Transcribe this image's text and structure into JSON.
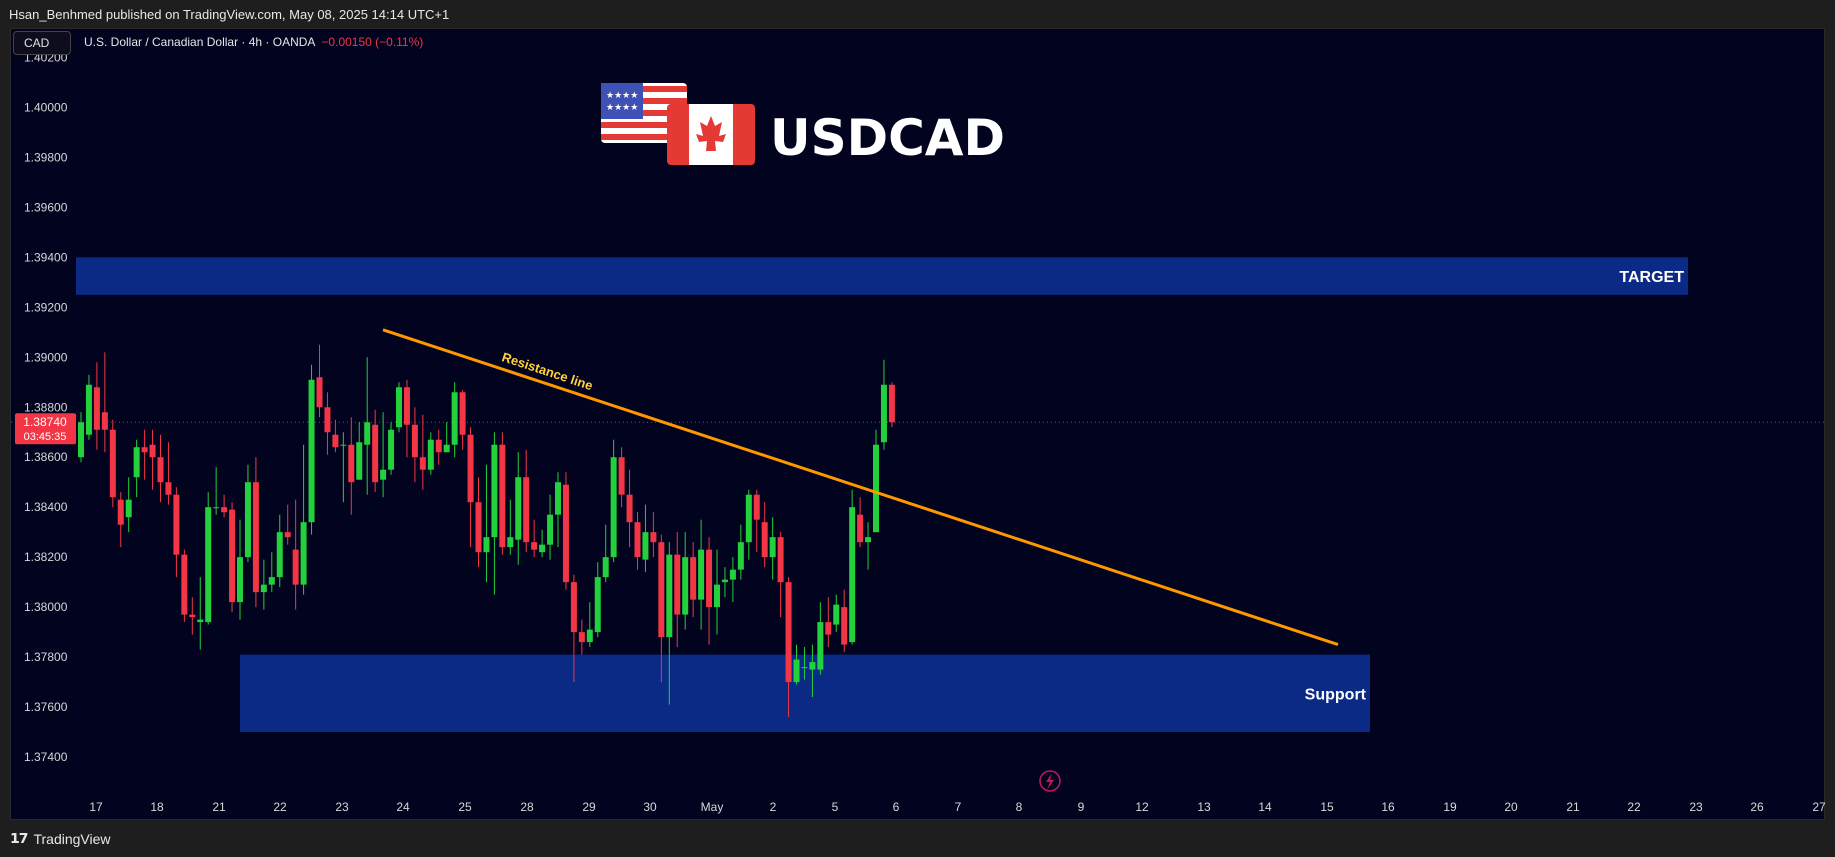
{
  "header": {
    "publisher_line": "Hsan_Benhmed published on TradingView.com, May 08, 2025 14:14 UTC+1"
  },
  "toolbar": {
    "currency_button": "CAD"
  },
  "symbol": {
    "name": "U.S. Dollar / Canadian Dollar · 4h · OANDA",
    "change": "−0.00150 (−0.11%)"
  },
  "footer": {
    "brand": "TradingView"
  },
  "chart_data": {
    "type": "candlestick",
    "title": "USDCAD",
    "ylim": [
      1.3728,
      1.4031
    ],
    "y_ticks": [
      "1.40200",
      "1.40000",
      "1.39800",
      "1.39600",
      "1.39400",
      "1.39200",
      "1.39000",
      "1.38800",
      "1.38600",
      "1.38400",
      "1.38200",
      "1.38000",
      "1.37800",
      "1.37600",
      "1.37400"
    ],
    "x_ticks": [
      "17",
      "18",
      "21",
      "22",
      "23",
      "24",
      "25",
      "28",
      "29",
      "30",
      "May",
      "2",
      "5",
      "6",
      "7",
      "8",
      "9",
      "12",
      "13",
      "14",
      "15",
      "16",
      "19",
      "20",
      "21",
      "22",
      "23",
      "26",
      "27"
    ],
    "current_price": {
      "price": "1.38740",
      "countdown": "03:45:35",
      "value": 1.3874
    },
    "zones": [
      {
        "label": "TARGET",
        "from": 1.3925,
        "to": 1.394,
        "x_from": "17",
        "x_to": "22"
      },
      {
        "label": "Support",
        "from": 1.375,
        "to": 1.3781,
        "x_from": "21",
        "x_to": "15"
      }
    ],
    "trendline": {
      "label": "Resistance line",
      "start": 1.3911,
      "end": 1.3785
    },
    "colors": {
      "up": "#22d13b",
      "down": "#f23645",
      "zone": "#0a2a86",
      "trendline": "#ff9800",
      "trend_label": "#ffd23b",
      "background": "#02031f"
    },
    "candles": [
      [
        1.386,
        1.3874,
        1.3858,
        1.3878
      ],
      [
        1.3869,
        1.3889,
        1.3867,
        1.3893
      ],
      [
        1.3888,
        1.3871,
        1.3863,
        1.3898
      ],
      [
        1.3878,
        1.3871,
        1.3862,
        1.3902
      ],
      [
        1.3871,
        1.3844,
        1.384,
        1.3875
      ],
      [
        1.3843,
        1.3833,
        1.3824,
        1.3846
      ],
      [
        1.3836,
        1.3843,
        1.383,
        1.3852
      ],
      [
        1.3852,
        1.3864,
        1.3844,
        1.3867
      ],
      [
        1.3864,
        1.3862,
        1.3851,
        1.3871
      ],
      [
        1.3865,
        1.386,
        1.3847,
        1.3871
      ],
      [
        1.386,
        1.385,
        1.3842,
        1.3869
      ],
      [
        1.385,
        1.3845,
        1.3841,
        1.3866
      ],
      [
        1.3845,
        1.3821,
        1.3812,
        1.3848
      ],
      [
        1.3821,
        1.3797,
        1.3794,
        1.3823
      ],
      [
        1.3797,
        1.3796,
        1.3789,
        1.3804
      ],
      [
        1.3794,
        1.3795,
        1.3783,
        1.3812
      ],
      [
        1.3794,
        1.384,
        1.3793,
        1.3846
      ],
      [
        1.384,
        1.384,
        1.3837,
        1.3856
      ],
      [
        1.384,
        1.3838,
        1.3836,
        1.3845
      ],
      [
        1.3839,
        1.3802,
        1.3798,
        1.3842
      ],
      [
        1.3802,
        1.382,
        1.3795,
        1.3835
      ],
      [
        1.382,
        1.385,
        1.3818,
        1.3857
      ],
      [
        1.385,
        1.3806,
        1.38,
        1.386
      ],
      [
        1.3806,
        1.3809,
        1.3799,
        1.3819
      ],
      [
        1.3809,
        1.3812,
        1.3806,
        1.3822
      ],
      [
        1.3812,
        1.383,
        1.3808,
        1.3837
      ],
      [
        1.383,
        1.3828,
        1.3825,
        1.3841
      ],
      [
        1.3823,
        1.3809,
        1.3799,
        1.3843
      ],
      [
        1.3809,
        1.3834,
        1.3805,
        1.3865
      ],
      [
        1.3834,
        1.3891,
        1.3829,
        1.3897
      ],
      [
        1.3892,
        1.388,
        1.3876,
        1.3905
      ],
      [
        1.388,
        1.387,
        1.3861,
        1.3886
      ],
      [
        1.3869,
        1.3864,
        1.3862,
        1.3875
      ],
      [
        1.3865,
        1.3865,
        1.3842,
        1.387
      ],
      [
        1.3865,
        1.385,
        1.3837,
        1.3876
      ],
      [
        1.3851,
        1.3866,
        1.3851,
        1.3874
      ],
      [
        1.3865,
        1.3874,
        1.3845,
        1.39
      ],
      [
        1.3873,
        1.385,
        1.3846,
        1.3879
      ],
      [
        1.3851,
        1.3855,
        1.3844,
        1.3878
      ],
      [
        1.3855,
        1.3871,
        1.3853,
        1.3874
      ],
      [
        1.3872,
        1.3888,
        1.387,
        1.389
      ],
      [
        1.3888,
        1.3873,
        1.386,
        1.3891
      ],
      [
        1.3873,
        1.386,
        1.385,
        1.388
      ],
      [
        1.386,
        1.3855,
        1.3847,
        1.3877
      ],
      [
        1.3855,
        1.3867,
        1.3853,
        1.387
      ],
      [
        1.3867,
        1.3862,
        1.3857,
        1.3871
      ],
      [
        1.3862,
        1.3865,
        1.3862,
        1.3874
      ],
      [
        1.3865,
        1.3886,
        1.386,
        1.389
      ],
      [
        1.3886,
        1.3869,
        1.3863,
        1.3887
      ],
      [
        1.3869,
        1.3842,
        1.3824,
        1.3872
      ],
      [
        1.3842,
        1.3822,
        1.3816,
        1.3852
      ],
      [
        1.3822,
        1.3828,
        1.381,
        1.3857
      ],
      [
        1.3828,
        1.3865,
        1.3805,
        1.387
      ],
      [
        1.3865,
        1.3824,
        1.3821,
        1.387
      ],
      [
        1.3824,
        1.3828,
        1.3821,
        1.3843
      ],
      [
        1.3827,
        1.3852,
        1.3817,
        1.3862
      ],
      [
        1.3852,
        1.3826,
        1.3822,
        1.3863
      ],
      [
        1.3826,
        1.3823,
        1.382,
        1.3835
      ],
      [
        1.3822,
        1.3825,
        1.382,
        1.3831
      ],
      [
        1.3825,
        1.3837,
        1.3819,
        1.3845
      ],
      [
        1.3837,
        1.385,
        1.3824,
        1.3854
      ],
      [
        1.3849,
        1.381,
        1.3807,
        1.3854
      ],
      [
        1.381,
        1.379,
        1.377,
        1.3813
      ],
      [
        1.379,
        1.3786,
        1.3781,
        1.3795
      ],
      [
        1.3786,
        1.3791,
        1.3784,
        1.3802
      ],
      [
        1.379,
        1.3812,
        1.3788,
        1.3818
      ],
      [
        1.3812,
        1.382,
        1.381,
        1.3833
      ],
      [
        1.382,
        1.386,
        1.3818,
        1.3867
      ],
      [
        1.386,
        1.3845,
        1.384,
        1.3864
      ],
      [
        1.3845,
        1.3834,
        1.3824,
        1.3855
      ],
      [
        1.3834,
        1.382,
        1.3815,
        1.3838
      ],
      [
        1.3819,
        1.383,
        1.3814,
        1.3841
      ],
      [
        1.383,
        1.3826,
        1.382,
        1.3838
      ],
      [
        1.3826,
        1.3788,
        1.377,
        1.3829
      ],
      [
        1.3788,
        1.3821,
        1.3761,
        1.3826
      ],
      [
        1.3821,
        1.3797,
        1.3784,
        1.383
      ],
      [
        1.3797,
        1.382,
        1.3791,
        1.383
      ],
      [
        1.382,
        1.3803,
        1.3796,
        1.3826
      ],
      [
        1.3803,
        1.3823,
        1.3791,
        1.3835
      ],
      [
        1.3823,
        1.38,
        1.3785,
        1.3828
      ],
      [
        1.38,
        1.3809,
        1.3789,
        1.3823
      ],
      [
        1.381,
        1.3811,
        1.3804,
        1.3816
      ],
      [
        1.3811,
        1.3815,
        1.3802,
        1.382
      ],
      [
        1.3815,
        1.3826,
        1.3811,
        1.3833
      ],
      [
        1.3826,
        1.3845,
        1.3819,
        1.3847
      ],
      [
        1.3845,
        1.3835,
        1.3822,
        1.3847
      ],
      [
        1.3834,
        1.382,
        1.3816,
        1.3842
      ],
      [
        1.382,
        1.3828,
        1.3811,
        1.3836
      ],
      [
        1.3828,
        1.381,
        1.3796,
        1.383
      ],
      [
        1.381,
        1.377,
        1.3756,
        1.3812
      ],
      [
        1.377,
        1.3779,
        1.3769,
        1.3785
      ],
      [
        1.3776,
        1.3776,
        1.3771,
        1.3784
      ],
      [
        1.3775,
        1.3778,
        1.3764,
        1.3785
      ],
      [
        1.3775,
        1.3794,
        1.3773,
        1.3802
      ],
      [
        1.3794,
        1.3789,
        1.3784,
        1.3804
      ],
      [
        1.3793,
        1.3801,
        1.379,
        1.3805
      ],
      [
        1.38,
        1.3785,
        1.3782,
        1.3807
      ],
      [
        1.3786,
        1.384,
        1.3785,
        1.3847
      ],
      [
        1.3837,
        1.3826,
        1.3824,
        1.3844
      ],
      [
        1.3826,
        1.3828,
        1.3815,
        1.3834
      ],
      [
        1.383,
        1.3865,
        1.383,
        1.3871
      ],
      [
        1.3866,
        1.3889,
        1.3863,
        1.3899
      ],
      [
        1.3889,
        1.3874,
        1.3872,
        1.389
      ]
    ]
  }
}
